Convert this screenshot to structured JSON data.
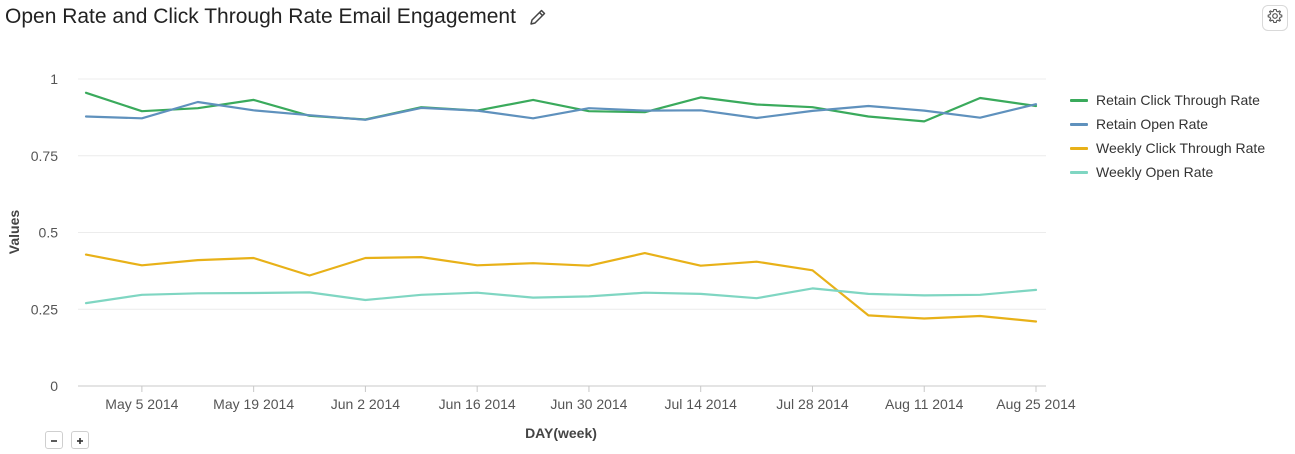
{
  "header": {
    "title": "Open Rate and Click Through Rate Email Engagement",
    "edit_icon": "pencil-icon",
    "settings_icon": "gear-icon"
  },
  "zoom": {
    "out_icon": "minus-icon",
    "in_icon": "plus-icon"
  },
  "chart_data": {
    "type": "line",
    "xlabel": "DAY(week)",
    "ylabel": "Values",
    "ylim": [
      0,
      1
    ],
    "yticks": [
      "0",
      "0.25",
      "0.5",
      "0.75",
      "1"
    ],
    "x": [
      "2014-04-28",
      "2014-05-05",
      "2014-05-12",
      "2014-05-19",
      "2014-05-26",
      "2014-06-02",
      "2014-06-09",
      "2014-06-16",
      "2014-06-23",
      "2014-06-30",
      "2014-07-07",
      "2014-07-14",
      "2014-07-21",
      "2014-07-28",
      "2014-08-04",
      "2014-08-11",
      "2014-08-18",
      "2014-08-25"
    ],
    "xticks": [
      {
        "date": "2014-05-05",
        "label": "May 5 2014"
      },
      {
        "date": "2014-05-19",
        "label": "May 19 2014"
      },
      {
        "date": "2014-06-02",
        "label": "Jun 2 2014"
      },
      {
        "date": "2014-06-16",
        "label": "Jun 16 2014"
      },
      {
        "date": "2014-06-30",
        "label": "Jun 30 2014"
      },
      {
        "date": "2014-07-14",
        "label": "Jul 14 2014"
      },
      {
        "date": "2014-07-28",
        "label": "Jul 28 2014"
      },
      {
        "date": "2014-08-11",
        "label": "Aug 11 2014"
      },
      {
        "date": "2014-08-25",
        "label": "Aug 25 2014"
      }
    ],
    "grid": true,
    "legend_position": "right",
    "series": [
      {
        "name": "Retain Click Through Rate",
        "color": "#3aaa5c",
        "values": [
          0.955,
          0.895,
          0.905,
          0.932,
          0.88,
          0.868,
          0.908,
          0.897,
          0.932,
          0.895,
          0.892,
          0.94,
          0.917,
          0.908,
          0.878,
          0.862,
          0.938,
          0.912
        ]
      },
      {
        "name": "Retain Open Rate",
        "color": "#5f91bd",
        "values": [
          0.878,
          0.872,
          0.925,
          0.898,
          0.882,
          0.867,
          0.906,
          0.897,
          0.872,
          0.905,
          0.897,
          0.898,
          0.873,
          0.896,
          0.912,
          0.897,
          0.874,
          0.918
        ]
      },
      {
        "name": "Weekly Click Through Rate",
        "color": "#e8b118",
        "values": [
          0.428,
          0.393,
          0.41,
          0.417,
          0.36,
          0.417,
          0.42,
          0.393,
          0.4,
          0.392,
          0.433,
          0.392,
          0.405,
          0.377,
          0.23,
          0.22,
          0.228,
          0.21
        ]
      },
      {
        "name": "Weekly Open Rate",
        "color": "#7fd6c2",
        "values": [
          0.27,
          0.297,
          0.302,
          0.303,
          0.305,
          0.28,
          0.297,
          0.304,
          0.288,
          0.292,
          0.304,
          0.3,
          0.286,
          0.318,
          0.3,
          0.295,
          0.297,
          0.313
        ]
      }
    ]
  }
}
